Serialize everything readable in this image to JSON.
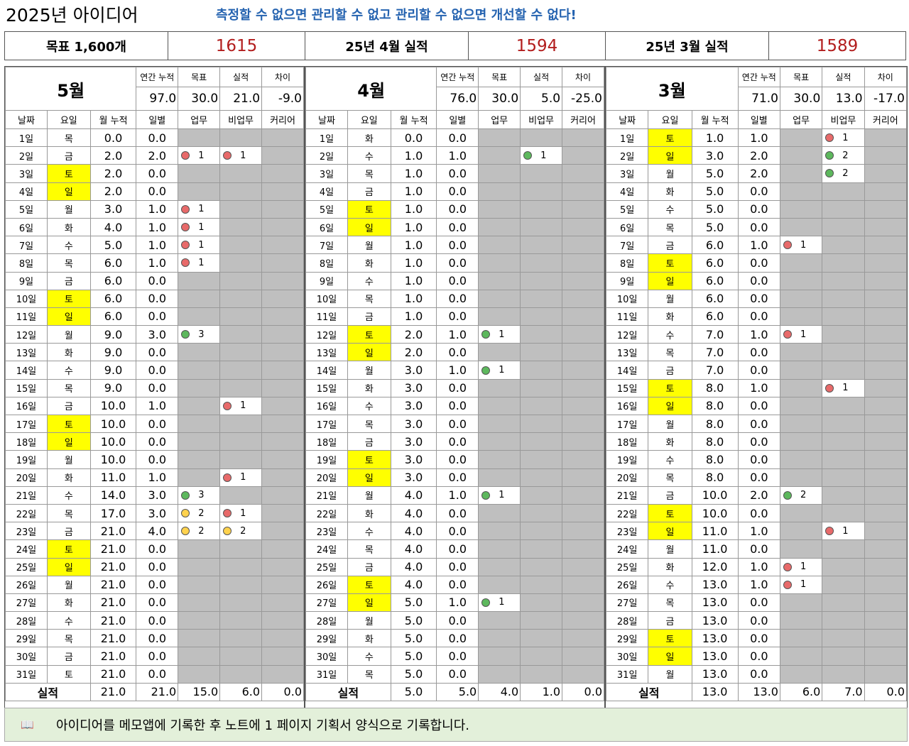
{
  "title": "2025년 아이디어",
  "slogan": "측정할 수 없으면 관리할 수 없고 관리할 수 없으면 개선할 수 없다!",
  "summary": {
    "goal_label": "목표 1,600개",
    "goal_value": "1615",
    "apr_label": "25년 4월 실적",
    "apr_value": "1594",
    "mar_label": "25년 3월 실적",
    "mar_value": "1589"
  },
  "labels": {
    "annual_total": "연간 누적",
    "target": "목표",
    "actual": "실적",
    "diff": "차이",
    "date": "날짜",
    "dow": "요일",
    "month_total": "월 누적",
    "daily": "일별",
    "work": "업무",
    "nonwork": "비업무",
    "career": "커리어",
    "total_row": "실적"
  },
  "colors": {
    "red": "#e86a6a",
    "green": "#5db85d",
    "yellow": "#ffd24d",
    "weekend": "#ffff00",
    "grey": "#bfbfbf"
  },
  "months": [
    {
      "name": "5월",
      "annual_total": "97.0",
      "target": "30.0",
      "actual": "21.0",
      "diff": "-9.0",
      "days": [
        {
          "d": "1일",
          "w": "목",
          "cum": "0.0",
          "day": "0.0",
          "work": null,
          "non": null
        },
        {
          "d": "2일",
          "w": "금",
          "cum": "2.0",
          "day": "2.0",
          "work": {
            "c": "red",
            "v": "1"
          },
          "non": {
            "c": "red",
            "v": "1"
          }
        },
        {
          "d": "3일",
          "w": "토",
          "we": true,
          "cum": "2.0",
          "day": "0.0",
          "work": null,
          "non": null
        },
        {
          "d": "4일",
          "w": "일",
          "we": true,
          "cum": "2.0",
          "day": "0.0",
          "work": null,
          "non": null
        },
        {
          "d": "5일",
          "w": "월",
          "cum": "3.0",
          "day": "1.0",
          "work": {
            "c": "red",
            "v": "1"
          },
          "non": null
        },
        {
          "d": "6일",
          "w": "화",
          "cum": "4.0",
          "day": "1.0",
          "work": {
            "c": "red",
            "v": "1"
          },
          "non": null
        },
        {
          "d": "7일",
          "w": "수",
          "cum": "5.0",
          "day": "1.0",
          "work": {
            "c": "red",
            "v": "1"
          },
          "non": null
        },
        {
          "d": "8일",
          "w": "목",
          "cum": "6.0",
          "day": "1.0",
          "work": {
            "c": "red",
            "v": "1"
          },
          "non": null
        },
        {
          "d": "9일",
          "w": "금",
          "cum": "6.0",
          "day": "0.0",
          "work": null,
          "non": null
        },
        {
          "d": "10일",
          "w": "토",
          "we": true,
          "cum": "6.0",
          "day": "0.0",
          "work": null,
          "non": null
        },
        {
          "d": "11일",
          "w": "일",
          "we": true,
          "cum": "6.0",
          "day": "0.0",
          "work": null,
          "non": null
        },
        {
          "d": "12일",
          "w": "월",
          "cum": "9.0",
          "day": "3.0",
          "work": {
            "c": "green",
            "v": "3"
          },
          "non": null
        },
        {
          "d": "13일",
          "w": "화",
          "cum": "9.0",
          "day": "0.0",
          "work": null,
          "non": null
        },
        {
          "d": "14일",
          "w": "수",
          "cum": "9.0",
          "day": "0.0",
          "work": null,
          "non": null
        },
        {
          "d": "15일",
          "w": "목",
          "cum": "9.0",
          "day": "0.0",
          "work": null,
          "non": null
        },
        {
          "d": "16일",
          "w": "금",
          "cum": "10.0",
          "day": "1.0",
          "work": null,
          "non": {
            "c": "red",
            "v": "1"
          }
        },
        {
          "d": "17일",
          "w": "토",
          "we": true,
          "cum": "10.0",
          "day": "0.0",
          "work": null,
          "non": null
        },
        {
          "d": "18일",
          "w": "일",
          "we": true,
          "cum": "10.0",
          "day": "0.0",
          "work": null,
          "non": null
        },
        {
          "d": "19일",
          "w": "월",
          "cum": "10.0",
          "day": "0.0",
          "work": null,
          "non": null
        },
        {
          "d": "20일",
          "w": "화",
          "cum": "11.0",
          "day": "1.0",
          "work": null,
          "non": {
            "c": "red",
            "v": "1"
          }
        },
        {
          "d": "21일",
          "w": "수",
          "cum": "14.0",
          "day": "3.0",
          "work": {
            "c": "green",
            "v": "3"
          },
          "non": null
        },
        {
          "d": "22일",
          "w": "목",
          "cum": "17.0",
          "day": "3.0",
          "work": {
            "c": "yellow",
            "v": "2"
          },
          "non": {
            "c": "red",
            "v": "1"
          }
        },
        {
          "d": "23일",
          "w": "금",
          "cum": "21.0",
          "day": "4.0",
          "work": {
            "c": "yellow",
            "v": "2"
          },
          "non": {
            "c": "yellow",
            "v": "2"
          }
        },
        {
          "d": "24일",
          "w": "토",
          "we": true,
          "cum": "21.0",
          "day": "0.0",
          "work": null,
          "non": null
        },
        {
          "d": "25일",
          "w": "일",
          "we": true,
          "cum": "21.0",
          "day": "0.0",
          "work": null,
          "non": null
        },
        {
          "d": "26일",
          "w": "월",
          "cum": "21.0",
          "day": "0.0",
          "work": null,
          "non": null
        },
        {
          "d": "27일",
          "w": "화",
          "cum": "21.0",
          "day": "0.0",
          "work": null,
          "non": null
        },
        {
          "d": "28일",
          "w": "수",
          "cum": "21.0",
          "day": "0.0",
          "work": null,
          "non": null
        },
        {
          "d": "29일",
          "w": "목",
          "cum": "21.0",
          "day": "0.0",
          "work": null,
          "non": null
        },
        {
          "d": "30일",
          "w": "금",
          "cum": "21.0",
          "day": "0.0",
          "work": null,
          "non": null
        },
        {
          "d": "31일",
          "w": "토",
          "cum": "21.0",
          "day": "0.0",
          "work": null,
          "non": null
        }
      ],
      "totals": {
        "cum": "21.0",
        "day": "21.0",
        "work": "15.0",
        "non": "6.0",
        "career": "0.0"
      }
    },
    {
      "name": "4월",
      "annual_total": "76.0",
      "target": "30.0",
      "actual": "5.0",
      "diff": "-25.0",
      "days": [
        {
          "d": "1일",
          "w": "화",
          "cum": "0.0",
          "day": "0.0",
          "work": null,
          "non": null
        },
        {
          "d": "2일",
          "w": "수",
          "cum": "1.0",
          "day": "1.0",
          "work": null,
          "non": {
            "c": "green",
            "v": "1"
          }
        },
        {
          "d": "3일",
          "w": "목",
          "cum": "1.0",
          "day": "0.0",
          "work": null,
          "non": null
        },
        {
          "d": "4일",
          "w": "금",
          "cum": "1.0",
          "day": "0.0",
          "work": null,
          "non": null
        },
        {
          "d": "5일",
          "w": "토",
          "we": true,
          "cum": "1.0",
          "day": "0.0",
          "work": null,
          "non": null
        },
        {
          "d": "6일",
          "w": "일",
          "we": true,
          "cum": "1.0",
          "day": "0.0",
          "work": null,
          "non": null
        },
        {
          "d": "7일",
          "w": "월",
          "cum": "1.0",
          "day": "0.0",
          "work": null,
          "non": null
        },
        {
          "d": "8일",
          "w": "화",
          "cum": "1.0",
          "day": "0.0",
          "work": null,
          "non": null
        },
        {
          "d": "9일",
          "w": "수",
          "cum": "1.0",
          "day": "0.0",
          "work": null,
          "non": null
        },
        {
          "d": "10일",
          "w": "목",
          "cum": "1.0",
          "day": "0.0",
          "work": null,
          "non": null
        },
        {
          "d": "11일",
          "w": "금",
          "cum": "1.0",
          "day": "0.0",
          "work": null,
          "non": null
        },
        {
          "d": "12일",
          "w": "토",
          "we": true,
          "cum": "2.0",
          "day": "1.0",
          "work": {
            "c": "green",
            "v": "1"
          },
          "non": null
        },
        {
          "d": "13일",
          "w": "일",
          "we": true,
          "cum": "2.0",
          "day": "0.0",
          "work": null,
          "non": null
        },
        {
          "d": "14일",
          "w": "월",
          "cum": "3.0",
          "day": "1.0",
          "work": {
            "c": "green",
            "v": "1"
          },
          "non": null
        },
        {
          "d": "15일",
          "w": "화",
          "cum": "3.0",
          "day": "0.0",
          "work": null,
          "non": null
        },
        {
          "d": "16일",
          "w": "수",
          "cum": "3.0",
          "day": "0.0",
          "work": null,
          "non": null
        },
        {
          "d": "17일",
          "w": "목",
          "cum": "3.0",
          "day": "0.0",
          "work": null,
          "non": null
        },
        {
          "d": "18일",
          "w": "금",
          "cum": "3.0",
          "day": "0.0",
          "work": null,
          "non": null
        },
        {
          "d": "19일",
          "w": "토",
          "we": true,
          "cum": "3.0",
          "day": "0.0",
          "work": null,
          "non": null
        },
        {
          "d": "20일",
          "w": "일",
          "we": true,
          "cum": "3.0",
          "day": "0.0",
          "work": null,
          "non": null
        },
        {
          "d": "21일",
          "w": "월",
          "cum": "4.0",
          "day": "1.0",
          "work": {
            "c": "green",
            "v": "1"
          },
          "non": null
        },
        {
          "d": "22일",
          "w": "화",
          "cum": "4.0",
          "day": "0.0",
          "work": null,
          "non": null
        },
        {
          "d": "23일",
          "w": "수",
          "cum": "4.0",
          "day": "0.0",
          "work": null,
          "non": null
        },
        {
          "d": "24일",
          "w": "목",
          "cum": "4.0",
          "day": "0.0",
          "work": null,
          "non": null
        },
        {
          "d": "25일",
          "w": "금",
          "cum": "4.0",
          "day": "0.0",
          "work": null,
          "non": null
        },
        {
          "d": "26일",
          "w": "토",
          "we": true,
          "cum": "4.0",
          "day": "0.0",
          "work": null,
          "non": null
        },
        {
          "d": "27일",
          "w": "일",
          "we": true,
          "cum": "5.0",
          "day": "1.0",
          "work": {
            "c": "green",
            "v": "1"
          },
          "non": null
        },
        {
          "d": "28일",
          "w": "월",
          "cum": "5.0",
          "day": "0.0",
          "work": null,
          "non": null
        },
        {
          "d": "29일",
          "w": "화",
          "cum": "5.0",
          "day": "0.0",
          "work": null,
          "non": null
        },
        {
          "d": "30일",
          "w": "수",
          "cum": "5.0",
          "day": "0.0",
          "work": null,
          "non": null
        },
        {
          "d": "31일",
          "w": "목",
          "cum": "5.0",
          "day": "0.0",
          "work": null,
          "non": null
        }
      ],
      "totals": {
        "cum": "5.0",
        "day": "5.0",
        "work": "4.0",
        "non": "1.0",
        "career": "0.0"
      }
    },
    {
      "name": "3월",
      "annual_total": "71.0",
      "target": "30.0",
      "actual": "13.0",
      "diff": "-17.0",
      "days": [
        {
          "d": "1일",
          "w": "토",
          "we": true,
          "cum": "1.0",
          "day": "1.0",
          "work": null,
          "non": {
            "c": "red",
            "v": "1"
          }
        },
        {
          "d": "2일",
          "w": "일",
          "we": true,
          "cum": "3.0",
          "day": "2.0",
          "work": null,
          "non": {
            "c": "green",
            "v": "2"
          }
        },
        {
          "d": "3일",
          "w": "월",
          "cum": "5.0",
          "day": "2.0",
          "work": null,
          "non": {
            "c": "green",
            "v": "2"
          }
        },
        {
          "d": "4일",
          "w": "화",
          "cum": "5.0",
          "day": "0.0",
          "work": null,
          "non": null
        },
        {
          "d": "5일",
          "w": "수",
          "cum": "5.0",
          "day": "0.0",
          "work": null,
          "non": null
        },
        {
          "d": "6일",
          "w": "목",
          "cum": "5.0",
          "day": "0.0",
          "work": null,
          "non": null
        },
        {
          "d": "7일",
          "w": "금",
          "cum": "6.0",
          "day": "1.0",
          "work": {
            "c": "red",
            "v": "1"
          },
          "non": null
        },
        {
          "d": "8일",
          "w": "토",
          "we": true,
          "cum": "6.0",
          "day": "0.0",
          "work": null,
          "non": null
        },
        {
          "d": "9일",
          "w": "일",
          "we": true,
          "cum": "6.0",
          "day": "0.0",
          "work": null,
          "non": null
        },
        {
          "d": "10일",
          "w": "월",
          "cum": "6.0",
          "day": "0.0",
          "work": null,
          "non": null
        },
        {
          "d": "11일",
          "w": "화",
          "cum": "6.0",
          "day": "0.0",
          "work": null,
          "non": null
        },
        {
          "d": "12일",
          "w": "수",
          "cum": "7.0",
          "day": "1.0",
          "work": {
            "c": "red",
            "v": "1"
          },
          "non": null
        },
        {
          "d": "13일",
          "w": "목",
          "cum": "7.0",
          "day": "0.0",
          "work": null,
          "non": null
        },
        {
          "d": "14일",
          "w": "금",
          "cum": "7.0",
          "day": "0.0",
          "work": null,
          "non": null
        },
        {
          "d": "15일",
          "w": "토",
          "we": true,
          "cum": "8.0",
          "day": "1.0",
          "work": null,
          "non": {
            "c": "red",
            "v": "1"
          }
        },
        {
          "d": "16일",
          "w": "일",
          "we": true,
          "cum": "8.0",
          "day": "0.0",
          "work": null,
          "non": null
        },
        {
          "d": "17일",
          "w": "월",
          "cum": "8.0",
          "day": "0.0",
          "work": null,
          "non": null
        },
        {
          "d": "18일",
          "w": "화",
          "cum": "8.0",
          "day": "0.0",
          "work": null,
          "non": null
        },
        {
          "d": "19일",
          "w": "수",
          "cum": "8.0",
          "day": "0.0",
          "work": null,
          "non": null
        },
        {
          "d": "20일",
          "w": "목",
          "cum": "8.0",
          "day": "0.0",
          "work": null,
          "non": null
        },
        {
          "d": "21일",
          "w": "금",
          "cum": "10.0",
          "day": "2.0",
          "work": {
            "c": "green",
            "v": "2"
          },
          "non": null
        },
        {
          "d": "22일",
          "w": "토",
          "we": true,
          "cum": "10.0",
          "day": "0.0",
          "work": null,
          "non": null
        },
        {
          "d": "23일",
          "w": "일",
          "we": true,
          "cum": "11.0",
          "day": "1.0",
          "work": null,
          "non": {
            "c": "red",
            "v": "1"
          }
        },
        {
          "d": "24일",
          "w": "월",
          "cum": "11.0",
          "day": "0.0",
          "work": null,
          "non": null
        },
        {
          "d": "25일",
          "w": "화",
          "cum": "12.0",
          "day": "1.0",
          "work": {
            "c": "red",
            "v": "1"
          },
          "non": null
        },
        {
          "d": "26일",
          "w": "수",
          "cum": "13.0",
          "day": "1.0",
          "work": {
            "c": "red",
            "v": "1"
          },
          "non": null
        },
        {
          "d": "27일",
          "w": "목",
          "cum": "13.0",
          "day": "0.0",
          "work": null,
          "non": null
        },
        {
          "d": "28일",
          "w": "금",
          "cum": "13.0",
          "day": "0.0",
          "work": null,
          "non": null
        },
        {
          "d": "29일",
          "w": "토",
          "we": true,
          "cum": "13.0",
          "day": "0.0",
          "work": null,
          "non": null
        },
        {
          "d": "30일",
          "w": "일",
          "we": true,
          "cum": "13.0",
          "day": "0.0",
          "work": null,
          "non": null
        },
        {
          "d": "31일",
          "w": "월",
          "cum": "13.0",
          "day": "0.0",
          "work": null,
          "non": null
        }
      ],
      "totals": {
        "cum": "13.0",
        "day": "13.0",
        "work": "6.0",
        "non": "7.0",
        "career": "0.0"
      }
    }
  ],
  "note": {
    "icon": "open-book-icon",
    "text": "아이디어를 메모앱에 기록한 후 노트에 1 페이지 기획서 양식으로 기록합니다."
  }
}
